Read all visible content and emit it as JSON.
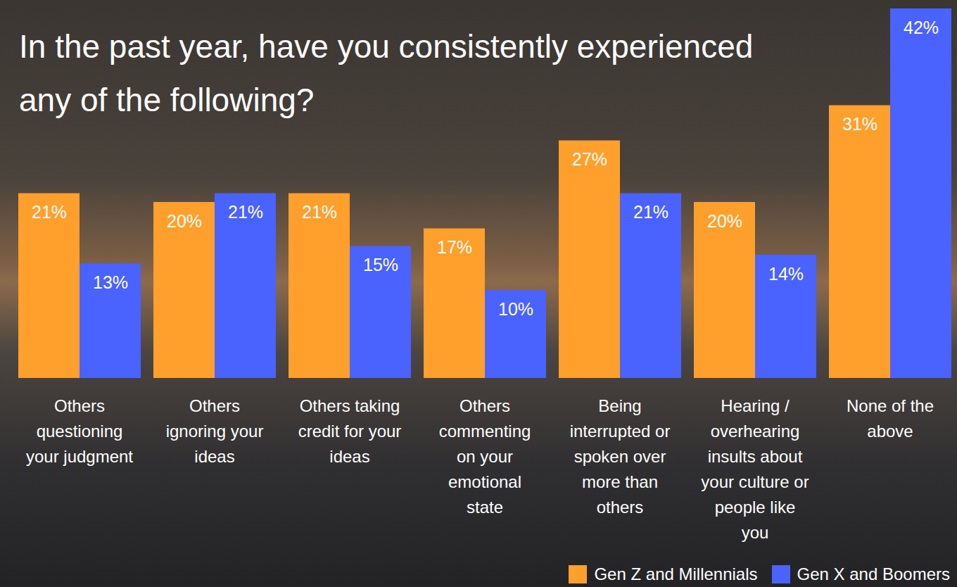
{
  "chart_data": {
    "type": "bar",
    "title": "In the past year, have you consistently experienced any of the following?",
    "categories": [
      "Others questioning your judgment",
      "Others ignoring your ideas",
      "Others taking credit for your ideas",
      "Others commenting on your emotional state",
      "Being interrupted or spoken over more than others",
      "Hearing / overhearing insults about your culture or people like you",
      "None of the above"
    ],
    "series": [
      {
        "name": "Gen Z and Millennials",
        "color": "#ff9f2c",
        "values": [
          21,
          20,
          21,
          17,
          27,
          20,
          31
        ],
        "value_labels": [
          "21%",
          "20%",
          "21%",
          "17%",
          "27%",
          "20%",
          "31%"
        ]
      },
      {
        "name": "Gen X and Boomers",
        "color": "#4a63ff",
        "values": [
          13,
          21,
          15,
          10,
          21,
          14,
          42
        ],
        "value_labels": [
          "13%",
          "21%",
          "15%",
          "10%",
          "21%",
          "14%",
          "42%"
        ]
      }
    ],
    "ylim": [
      0,
      42
    ],
    "tick_labels": false,
    "data_labels": true,
    "legend": "bottom-right"
  }
}
